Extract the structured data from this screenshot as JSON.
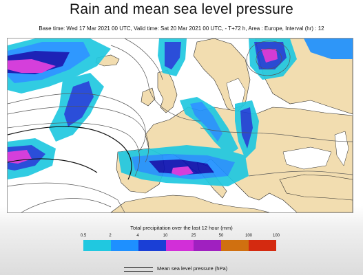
{
  "header": {
    "title": "Rain and mean sea level pressure",
    "subtitle": "Base time: Wed 17 Mar 2021 00 UTC, Valid time: Sat 20 Mar 2021 00 UTC, - T+72 h, Area : Europe, Interval (hr) : 12"
  },
  "map": {
    "region": "Europe",
    "land_color": "#f2ddb0",
    "sea_color": "#ffffff",
    "isobar_color": "#555555",
    "precip_colors": [
      "#20c8e0",
      "#1e90ff",
      "#1a3fd6",
      "#0a10b0",
      "#d22fd8",
      "#a020c0",
      "#d07010",
      "#d42a10"
    ]
  },
  "legend": {
    "precip_title": "Total precipitation over the last 12 hour (mm)",
    "ticks": [
      "0.5",
      "2",
      "4",
      "10",
      "25",
      "50",
      "100",
      "100"
    ],
    "pressure_label": "Mean sea level pressure (hPa)"
  }
}
